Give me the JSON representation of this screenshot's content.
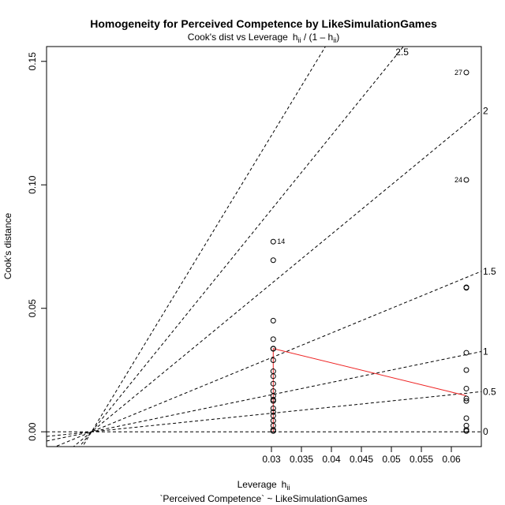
{
  "chart_data": {
    "type": "scatter",
    "title": "Homogeneity for Perceived Competence by LikeSimulationGames",
    "subtitle_prefix": "Cook's dist vs Leverage",
    "subtitle_formula": "h",
    "subtitle_sub": "ii",
    "subtitle_rest": " / (1 – h",
    "subtitle_close": ")",
    "xlabel": "Leverage",
    "xlabel_h": "h",
    "xlabel_sub": "ii",
    "ylabel": "Cook's distance",
    "caption": "`Perceived Competence` ~ LikeSimulationGames",
    "xlim": [
      -0.0075,
      0.065
    ],
    "ylim": [
      -0.006,
      0.156
    ],
    "x_ticks": [
      "0.03",
      "0.035",
      "0.04",
      "0.045",
      "0.05",
      "0.055",
      "0.06"
    ],
    "y_ticks": [
      "0.00",
      "0.05",
      "0.10",
      "0.15"
    ],
    "contours": [
      {
        "label": "0",
        "slope": 0
      },
      {
        "label": "0.5",
        "slope": 0.25
      },
      {
        "label": "1",
        "slope": 0.5
      },
      {
        "label": "1.5",
        "slope": 1.0
      },
      {
        "label": "2",
        "slope": 2.0
      },
      {
        "label": "2.5",
        "slope": 3.0
      },
      {
        "label": "",
        "slope": 4.0
      }
    ],
    "series": [
      {
        "points": [
          {
            "x": 0.0303,
            "y": 0.077,
            "label": "14"
          },
          {
            "x": 0.0303,
            "y": 0.0695
          },
          {
            "x": 0.0303,
            "y": 0.045
          },
          {
            "x": 0.0303,
            "y": 0.0375
          },
          {
            "x": 0.0303,
            "y": 0.0337
          },
          {
            "x": 0.0303,
            "y": 0.0336
          },
          {
            "x": 0.0303,
            "y": 0.029
          },
          {
            "x": 0.0303,
            "y": 0.0245
          },
          {
            "x": 0.0303,
            "y": 0.0225
          },
          {
            "x": 0.0303,
            "y": 0.0195
          },
          {
            "x": 0.0303,
            "y": 0.0165
          },
          {
            "x": 0.0303,
            "y": 0.0145
          },
          {
            "x": 0.0303,
            "y": 0.013
          },
          {
            "x": 0.0303,
            "y": 0.0125
          },
          {
            "x": 0.0303,
            "y": 0.0095
          },
          {
            "x": 0.0303,
            "y": 0.008
          },
          {
            "x": 0.0303,
            "y": 0.0065
          },
          {
            "x": 0.0303,
            "y": 0.0045
          },
          {
            "x": 0.0303,
            "y": 0.0025
          },
          {
            "x": 0.0303,
            "y": 0.0008
          },
          {
            "x": 0.0303,
            "y": 0.0003
          },
          {
            "x": 0.0625,
            "y": 0.1455,
            "label": "27"
          },
          {
            "x": 0.0625,
            "y": 0.102,
            "label": "24"
          },
          {
            "x": 0.0625,
            "y": 0.0585
          },
          {
            "x": 0.0625,
            "y": 0.0583
          },
          {
            "x": 0.0625,
            "y": 0.032
          },
          {
            "x": 0.0625,
            "y": 0.025
          },
          {
            "x": 0.0625,
            "y": 0.0175
          },
          {
            "x": 0.0625,
            "y": 0.0135
          },
          {
            "x": 0.0625,
            "y": 0.0125
          },
          {
            "x": 0.0625,
            "y": 0.0055
          },
          {
            "x": 0.0625,
            "y": 0.0025
          },
          {
            "x": 0.0625,
            "y": 0.0008
          },
          {
            "x": 0.0625,
            "y": 0.0003
          }
        ]
      }
    ],
    "smooth_line": [
      {
        "x": 0.0303,
        "y": 0.0
      },
      {
        "x": 0.0303,
        "y": 0.0337
      },
      {
        "x": 0.0625,
        "y": 0.0146
      }
    ],
    "colors": {
      "points": "#000000",
      "smooth": "#ee2222",
      "contour": "#000000"
    }
  }
}
